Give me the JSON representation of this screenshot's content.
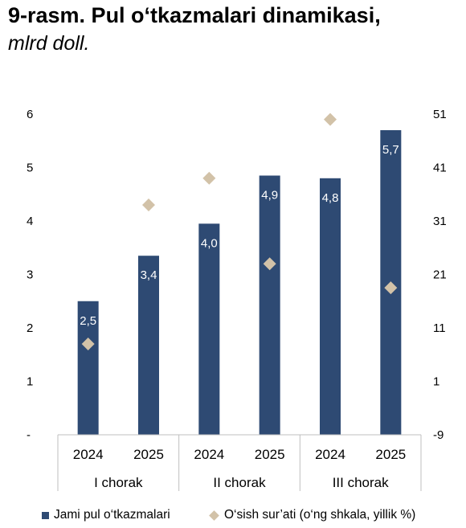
{
  "title": "9-rasm. Pul o‘tkazmalari dinamikasi,",
  "subtitle": "mlrd doll.",
  "chart_data": {
    "type": "bar",
    "groups": [
      {
        "label": "I chorak",
        "categories": [
          "2024",
          "2025"
        ]
      },
      {
        "label": "II chorak",
        "categories": [
          "2024",
          "2025"
        ]
      },
      {
        "label": "III chorak",
        "categories": [
          "2024",
          "2025"
        ]
      }
    ],
    "series": [
      {
        "name": "Jami pul o‘tkazmalari",
        "type": "bar",
        "axis": "left",
        "color": "#2e4a73",
        "values": [
          2.5,
          3.35,
          3.95,
          4.85,
          4.8,
          5.7
        ],
        "labels": [
          "2,5",
          "3,4",
          "4,0",
          "4,9",
          "4,8",
          "5,7"
        ]
      },
      {
        "name": "O‘sish sur’ati (o‘ng shkala, yillik %)",
        "type": "scatter",
        "axis": "right",
        "color": "#d2c2a8",
        "values": [
          8,
          34,
          39,
          23,
          50,
          18.5
        ]
      }
    ],
    "y_left": {
      "ylim": [
        0,
        6
      ],
      "ticks": [
        "-",
        "1",
        "2",
        "3",
        "4",
        "5",
        "6"
      ]
    },
    "y_right": {
      "ylim": [
        -9,
        51
      ],
      "ticks": [
        "-9",
        "1",
        "11",
        "21",
        "31",
        "41",
        "51"
      ]
    },
    "grid": false,
    "legend": "bottom"
  }
}
